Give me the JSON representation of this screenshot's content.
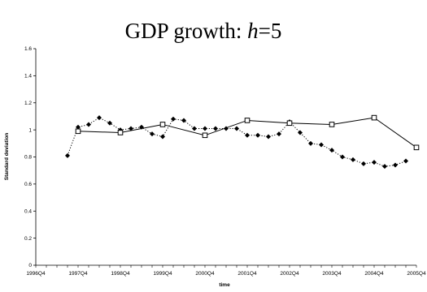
{
  "chart_data": {
    "type": "line",
    "title_prefix": "GDP growth: ",
    "title_var": "h",
    "title_suffix": "=5",
    "xlabel": "time",
    "ylabel": "Standard deviation",
    "ylim": [
      0,
      1.6
    ],
    "yticks": [
      "0",
      "0.2",
      "0.4",
      "0.6",
      "0.8",
      "1",
      "1.2",
      "1.4",
      "1.6"
    ],
    "xticks": [
      "1996Q4",
      "1997Q4",
      "1998Q4",
      "1999Q4",
      "2000Q4",
      "2001Q4",
      "2002Q4",
      "2003Q4",
      "2004Q4",
      "2005Q4"
    ],
    "legend": false,
    "grid": false,
    "series": [
      {
        "style": "dotted line with filled diamond markers",
        "points": [
          [
            "1997Q3",
            0.81
          ],
          [
            "1997Q4",
            1.02
          ],
          [
            "1998Q1",
            1.04
          ],
          [
            "1998Q2",
            1.09
          ],
          [
            "1998Q3",
            1.05
          ],
          [
            "1998Q4",
            1.0
          ],
          [
            "1999Q1",
            1.01
          ],
          [
            "1999Q2",
            1.02
          ],
          [
            "1999Q3",
            0.97
          ],
          [
            "1999Q4",
            0.95
          ],
          [
            "2000Q1",
            1.08
          ],
          [
            "2000Q2",
            1.07
          ],
          [
            "2000Q3",
            1.01
          ],
          [
            "2000Q4",
            1.01
          ],
          [
            "2001Q1",
            1.01
          ],
          [
            "2001Q2",
            1.01
          ],
          [
            "2001Q3",
            1.01
          ],
          [
            "2001Q4",
            0.96
          ],
          [
            "2002Q1",
            0.96
          ],
          [
            "2002Q2",
            0.95
          ],
          [
            "2002Q3",
            0.97
          ],
          [
            "2002Q4",
            1.06
          ],
          [
            "2003Q1",
            0.98
          ],
          [
            "2003Q2",
            0.9
          ],
          [
            "2003Q3",
            0.89
          ],
          [
            "2003Q4",
            0.85
          ],
          [
            "2004Q1",
            0.8
          ],
          [
            "2004Q2",
            0.78
          ],
          [
            "2004Q3",
            0.75
          ],
          [
            "2004Q4",
            0.76
          ],
          [
            "2005Q1",
            0.73
          ],
          [
            "2005Q2",
            0.74
          ],
          [
            "2005Q3",
            0.77
          ]
        ]
      },
      {
        "style": "solid line with open square markers",
        "points": [
          [
            "1997Q4",
            0.99
          ],
          [
            "1998Q4",
            0.98
          ],
          [
            "1999Q4",
            1.04
          ],
          [
            "2000Q4",
            0.96
          ],
          [
            "2001Q4",
            1.07
          ],
          [
            "2002Q4",
            1.05
          ],
          [
            "2003Q4",
            1.04
          ],
          [
            "2004Q4",
            1.09
          ],
          [
            "2005Q4",
            0.87
          ]
        ]
      }
    ]
  }
}
